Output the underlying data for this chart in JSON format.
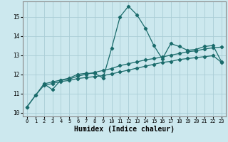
{
  "background_color": "#cce8ee",
  "grid_color": "#aacdd6",
  "line_color": "#1a6b6b",
  "xlabel": "Humidex (Indice chaleur)",
  "xlabel_fontsize": 7.0,
  "xlim": [
    -0.5,
    23.5
  ],
  "ylim": [
    9.8,
    15.8
  ],
  "xticks": [
    0,
    1,
    2,
    3,
    4,
    5,
    6,
    7,
    8,
    9,
    10,
    11,
    12,
    13,
    14,
    15,
    16,
    17,
    18,
    19,
    20,
    21,
    22,
    23
  ],
  "yticks": [
    10,
    11,
    12,
    13,
    14,
    15
  ],
  "line1_x": [
    0,
    1,
    2,
    3,
    4,
    5,
    6,
    7,
    8,
    9,
    10,
    11,
    12,
    13,
    14,
    15,
    16,
    17,
    18,
    19,
    20,
    21,
    22,
    23
  ],
  "line1_y": [
    10.3,
    10.9,
    11.5,
    11.2,
    11.7,
    11.8,
    12.0,
    12.05,
    12.05,
    11.8,
    13.35,
    15.0,
    15.55,
    15.1,
    14.4,
    13.5,
    12.8,
    13.6,
    13.45,
    13.25,
    13.3,
    13.45,
    13.5,
    12.65
  ],
  "line2_x": [
    2,
    3,
    4,
    5,
    6,
    7,
    8,
    9,
    10,
    11,
    12,
    13,
    14,
    15,
    16,
    17,
    18,
    19,
    20,
    21,
    22,
    23
  ],
  "line2_y": [
    11.5,
    11.6,
    11.7,
    11.75,
    11.9,
    12.0,
    12.1,
    12.2,
    12.3,
    12.45,
    12.55,
    12.65,
    12.75,
    12.82,
    12.9,
    13.0,
    13.08,
    13.18,
    13.22,
    13.32,
    13.38,
    13.42
  ],
  "line3_x": [
    0,
    1,
    2,
    3,
    4,
    5,
    6,
    7,
    8,
    9,
    10,
    11,
    12,
    13,
    14,
    15,
    16,
    17,
    18,
    19,
    20,
    21,
    22,
    23
  ],
  "line3_y": [
    10.3,
    10.9,
    11.42,
    11.52,
    11.62,
    11.68,
    11.78,
    11.83,
    11.88,
    11.93,
    12.02,
    12.12,
    12.22,
    12.32,
    12.42,
    12.52,
    12.62,
    12.67,
    12.77,
    12.82,
    12.87,
    12.92,
    12.97,
    12.62
  ]
}
